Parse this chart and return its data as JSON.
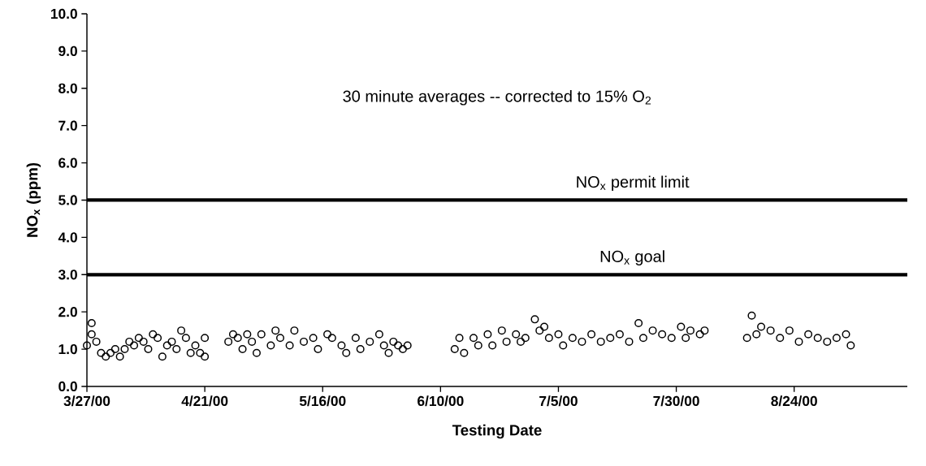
{
  "chart_data": {
    "type": "scatter",
    "xlabel": "Testing Date",
    "ylabel": "NO$_{x}$ (ppm)",
    "annotations": [
      "30 minute averages -- corrected to 15% O$_{2}$"
    ],
    "marker": "circle",
    "xlim": [
      "2000-03-27",
      "2000-09-17"
    ],
    "xticks": [
      {
        "value": "2000-03-27",
        "label": "3/27/00"
      },
      {
        "value": "2000-04-21",
        "label": "4/21/00"
      },
      {
        "value": "2000-05-16",
        "label": "5/16/00"
      },
      {
        "value": "2000-06-10",
        "label": "6/10/00"
      },
      {
        "value": "2000-07-05",
        "label": "7/5/00"
      },
      {
        "value": "2000-07-30",
        "label": "7/30/00"
      },
      {
        "value": "2000-08-24",
        "label": "8/24/00"
      }
    ],
    "ylim": [
      0,
      10
    ],
    "yticks": [
      {
        "value": 0,
        "label": "0.0"
      },
      {
        "value": 1,
        "label": "1.0"
      },
      {
        "value": 2,
        "label": "2.0"
      },
      {
        "value": 3,
        "label": "3.0"
      },
      {
        "value": 4,
        "label": "4.0"
      },
      {
        "value": 5,
        "label": "5.0"
      },
      {
        "value": 6,
        "label": "6.0"
      },
      {
        "value": 7,
        "label": "7.0"
      },
      {
        "value": 8,
        "label": "8.0"
      },
      {
        "value": 9,
        "label": "9.0"
      },
      {
        "value": 10,
        "label": "10.0"
      }
    ],
    "ref_lines": [
      {
        "axis": "y",
        "value": 5,
        "label": "NO$_{x}$ permit limit",
        "color": "#000000"
      },
      {
        "axis": "y",
        "value": 3,
        "label": "NO$_{x}$ goal",
        "color": "#000000"
      }
    ],
    "series": [
      {
        "color": "#000000",
        "x": [
          "2000-03-27",
          "2000-03-28",
          "2000-03-28",
          "2000-03-29",
          "2000-03-30",
          "2000-03-31",
          "2000-04-01",
          "2000-04-02",
          "2000-04-03",
          "2000-04-04",
          "2000-04-05",
          "2000-04-06",
          "2000-04-07",
          "2000-04-08",
          "2000-04-09",
          "2000-04-10",
          "2000-04-11",
          "2000-04-12",
          "2000-04-13",
          "2000-04-14",
          "2000-04-15",
          "2000-04-16",
          "2000-04-17",
          "2000-04-18",
          "2000-04-19",
          "2000-04-20",
          "2000-04-21",
          "2000-04-21",
          "2000-04-26",
          "2000-04-27",
          "2000-04-28",
          "2000-04-29",
          "2000-04-30",
          "2000-05-01",
          "2000-05-02",
          "2000-05-03",
          "2000-05-05",
          "2000-05-06",
          "2000-05-07",
          "2000-05-09",
          "2000-05-10",
          "2000-05-12",
          "2000-05-14",
          "2000-05-15",
          "2000-05-17",
          "2000-05-18",
          "2000-05-20",
          "2000-05-21",
          "2000-05-23",
          "2000-05-24",
          "2000-05-26",
          "2000-05-28",
          "2000-05-29",
          "2000-05-30",
          "2000-05-31",
          "2000-06-01",
          "2000-06-02",
          "2000-06-03",
          "2000-06-13",
          "2000-06-14",
          "2000-06-15",
          "2000-06-17",
          "2000-06-18",
          "2000-06-20",
          "2000-06-21",
          "2000-06-23",
          "2000-06-24",
          "2000-06-26",
          "2000-06-27",
          "2000-06-28",
          "2000-06-30",
          "2000-07-01",
          "2000-07-02",
          "2000-07-03",
          "2000-07-05",
          "2000-07-06",
          "2000-07-08",
          "2000-07-10",
          "2000-07-12",
          "2000-07-14",
          "2000-07-16",
          "2000-07-18",
          "2000-07-20",
          "2000-07-22",
          "2000-07-23",
          "2000-07-25",
          "2000-07-27",
          "2000-07-29",
          "2000-07-31",
          "2000-08-01",
          "2000-08-02",
          "2000-08-04",
          "2000-08-05",
          "2000-08-14",
          "2000-08-15",
          "2000-08-16",
          "2000-08-17",
          "2000-08-19",
          "2000-08-21",
          "2000-08-23",
          "2000-08-25",
          "2000-08-27",
          "2000-08-29",
          "2000-08-31",
          "2000-09-02",
          "2000-09-04",
          "2000-09-05"
        ],
        "values": [
          1.1,
          1.7,
          1.4,
          1.2,
          0.9,
          0.8,
          0.9,
          1.0,
          0.8,
          1.0,
          1.2,
          1.1,
          1.3,
          1.2,
          1.0,
          1.4,
          1.3,
          0.8,
          1.1,
          1.2,
          1.0,
          1.5,
          1.3,
          0.9,
          1.1,
          0.9,
          1.3,
          0.8,
          1.2,
          1.4,
          1.3,
          1.0,
          1.4,
          1.2,
          0.9,
          1.4,
          1.1,
          1.5,
          1.3,
          1.1,
          1.5,
          1.2,
          1.3,
          1.0,
          1.4,
          1.3,
          1.1,
          0.9,
          1.3,
          1.0,
          1.2,
          1.4,
          1.1,
          0.9,
          1.2,
          1.1,
          1.0,
          1.1,
          1.0,
          1.3,
          0.9,
          1.3,
          1.1,
          1.4,
          1.1,
          1.5,
          1.2,
          1.4,
          1.2,
          1.3,
          1.8,
          1.5,
          1.6,
          1.3,
          1.4,
          1.1,
          1.3,
          1.2,
          1.4,
          1.2,
          1.3,
          1.4,
          1.2,
          1.7,
          1.3,
          1.5,
          1.4,
          1.3,
          1.6,
          1.3,
          1.5,
          1.4,
          1.5,
          1.3,
          1.9,
          1.4,
          1.6,
          1.5,
          1.3,
          1.5,
          1.2,
          1.4,
          1.3,
          1.2,
          1.3,
          1.4,
          1.1
        ]
      }
    ]
  }
}
